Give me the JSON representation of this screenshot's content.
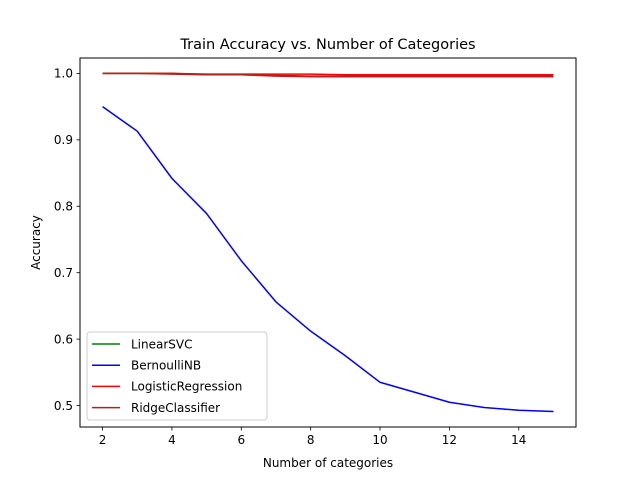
{
  "chart_data": {
    "type": "line",
    "title": "Train Accuracy vs. Number of Categories",
    "xlabel": "Number of categories",
    "ylabel": "Accuracy",
    "xlim": [
      1.35,
      15.65
    ],
    "ylim": [
      0.4677,
      1.0232
    ],
    "xticks": [
      2,
      4,
      6,
      8,
      10,
      12,
      14
    ],
    "yticks": [
      0.5,
      0.6,
      0.7,
      0.8,
      0.9,
      1.0
    ],
    "ytick_labels": [
      "0.5",
      "0.6",
      "0.7",
      "0.8",
      "0.9",
      "1.0"
    ],
    "grid": false,
    "legend_position": "lower-left",
    "x": [
      2,
      3,
      4,
      5,
      6,
      7,
      8,
      9,
      10,
      11,
      12,
      13,
      14,
      15
    ],
    "series": [
      {
        "name": "LinearSVC",
        "color": "#008000",
        "values": [
          1.0,
          1.0,
          1.0,
          0.998,
          0.998,
          0.997,
          0.996,
          0.996,
          0.996,
          0.996,
          0.996,
          0.996,
          0.996,
          0.996
        ]
      },
      {
        "name": "BernoulliNB",
        "color": "#0000ff",
        "values": [
          0.95,
          0.913,
          0.842,
          0.789,
          0.718,
          0.656,
          0.612,
          0.575,
          0.535,
          0.52,
          0.505,
          0.497,
          0.493,
          0.491
        ]
      },
      {
        "name": "LogisticRegression",
        "color": "#ff0000",
        "values": [
          1.0,
          1.0,
          1.0,
          0.999,
          0.999,
          0.999,
          0.999,
          0.998,
          0.998,
          0.998,
          0.998,
          0.998,
          0.998,
          0.998
        ]
      },
      {
        "name": "RidgeClassifier",
        "color": "#b22222",
        "values": [
          1.0,
          1.0,
          0.999,
          0.998,
          0.998,
          0.996,
          0.995,
          0.995,
          0.995,
          0.995,
          0.995,
          0.995,
          0.995,
          0.995
        ]
      }
    ]
  }
}
